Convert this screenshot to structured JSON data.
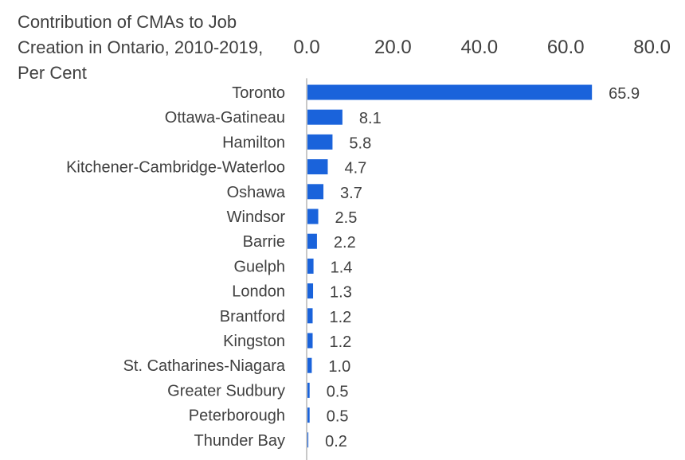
{
  "chart_data": {
    "type": "bar",
    "orientation": "horizontal",
    "title": "Contribution of CMAs to Job Creation in Ontario, 2010-2019, Per Cent",
    "xlabel": "",
    "ylabel": "",
    "xlim": [
      0,
      80
    ],
    "ticks": [
      "0.0",
      "20.0",
      "40.0",
      "60.0",
      "80.0"
    ],
    "tick_values": [
      0,
      20,
      40,
      60,
      80
    ],
    "axis_position": "top",
    "grid": false,
    "bar_color": "#1A63DB",
    "axis_color": "#C8C8C8",
    "categories": [
      "Toronto",
      "Ottawa-Gatineau",
      "Hamilton",
      "Kitchener-Cambridge-Waterloo",
      "Oshawa",
      "Windsor",
      "Barrie",
      "Guelph",
      "London",
      "Brantford",
      "Kingston",
      "St. Catharines-Niagara",
      "Greater Sudbury",
      "Peterborough",
      "Thunder Bay"
    ],
    "values": [
      65.9,
      8.1,
      5.8,
      4.7,
      3.7,
      2.5,
      2.2,
      1.4,
      1.3,
      1.2,
      1.2,
      1.0,
      0.5,
      0.5,
      0.2
    ],
    "value_labels": [
      "65.9",
      "8.1",
      "5.8",
      "4.7",
      "3.7",
      "2.5",
      "2.2",
      "1.4",
      "1.3",
      "1.2",
      "1.2",
      "1.0",
      "0.5",
      "0.5",
      "0.2"
    ]
  }
}
